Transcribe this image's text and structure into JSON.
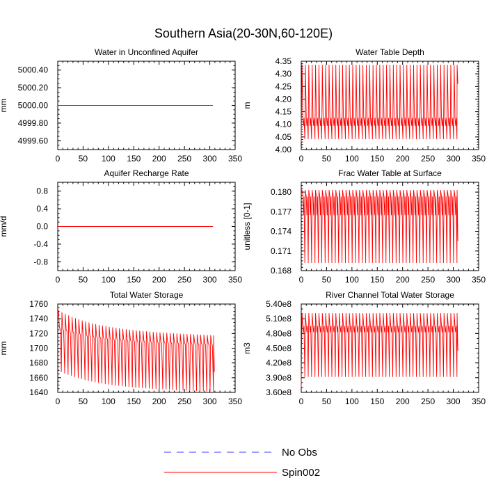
{
  "figure": {
    "title": "Southern Asia(20-30N,60-120E)",
    "colors": {
      "spin": "#ff0000",
      "noobs": "#3b3bff",
      "axis": "#000000"
    }
  },
  "legend": {
    "items": [
      {
        "label": "No Obs",
        "style": "dashed",
        "color": "#3b3bff"
      },
      {
        "label": "Spin002",
        "style": "solid",
        "color": "#ff0000"
      }
    ]
  },
  "chart_data": [
    {
      "id": "unconfined-aquifer",
      "type": "line",
      "title": "Water in Unconfined Aquifer",
      "ylabel": "mm",
      "xlim": [
        0,
        350
      ],
      "xticks": [
        0,
        50,
        100,
        150,
        200,
        250,
        300,
        350
      ],
      "ylim": [
        4999.5,
        5000.5
      ],
      "yticks": [
        4999.6,
        4999.8,
        5000.0,
        5000.2,
        5000.4
      ],
      "ytick_labels": [
        "4999.60",
        "4999.80",
        "5000.00",
        "5000.20",
        "5000.40"
      ],
      "minor_y_step": 0.05,
      "series": [
        {
          "name": "Spin002",
          "color": "#ff0000",
          "pattern": "constant",
          "x_end": 306,
          "value": 5000.0
        }
      ]
    },
    {
      "id": "water-table-depth",
      "type": "line",
      "title": "Water Table Depth",
      "ylabel": "m",
      "xlim": [
        0,
        350
      ],
      "xticks": [
        0,
        50,
        100,
        150,
        200,
        250,
        300,
        350
      ],
      "ylim": [
        4.0,
        4.35
      ],
      "yticks": [
        4.0,
        4.05,
        4.1,
        4.15,
        4.2,
        4.25,
        4.3,
        4.35
      ],
      "ytick_labels": [
        "4.00",
        "4.05",
        "4.10",
        "4.15",
        "4.20",
        "4.25",
        "4.30",
        "4.35"
      ],
      "minor_y_step": 0.01,
      "series": [
        {
          "name": "Spin002",
          "color": "#ff0000",
          "pattern": "seasonal",
          "period": 6.67,
          "cycles": 46,
          "x_end": 309,
          "peak": 4.335,
          "trough": 4.042,
          "mid_high": 4.125,
          "mid_low": 4.095,
          "start": 4.03,
          "end_value": 4.26
        }
      ]
    },
    {
      "id": "recharge-rate",
      "type": "line",
      "title": "Aquifer Recharge Rate",
      "ylabel": "mm/d",
      "xlim": [
        0,
        350
      ],
      "xticks": [
        0,
        50,
        100,
        150,
        200,
        250,
        300,
        350
      ],
      "ylim": [
        -1.0,
        1.0
      ],
      "yticks": [
        -0.8,
        -0.4,
        0.0,
        0.4,
        0.8
      ],
      "ytick_labels": [
        "-0.8",
        "-0.4",
        "0.0",
        "0.4",
        "0.8"
      ],
      "minor_y_step": 0.1,
      "series": [
        {
          "name": "Spin002",
          "color": "#ff0000",
          "pattern": "constant",
          "x_end": 306,
          "value": 0.0
        }
      ]
    },
    {
      "id": "frac-water-table",
      "type": "line",
      "title": "Frac Water Table at Surface",
      "ylabel": "unitless [0-1]",
      "xlim": [
        0,
        350
      ],
      "xticks": [
        0,
        50,
        100,
        150,
        200,
        250,
        300,
        350
      ],
      "ylim": [
        0.168,
        0.1815
      ],
      "yticks": [
        0.168,
        0.171,
        0.174,
        0.177,
        0.18
      ],
      "ytick_labels": [
        "0.168",
        "0.171",
        "0.174",
        "0.177",
        "0.180"
      ],
      "minor_y_step": 0.0005,
      "series": [
        {
          "name": "Spin002",
          "color": "#ff0000",
          "pattern": "seasonal",
          "period": 6.67,
          "cycles": 46,
          "x_end": 309,
          "peak": 0.1803,
          "trough": 0.1692,
          "mid_high": 0.1793,
          "mid_low": 0.1765,
          "start": 0.1803,
          "end_value": 0.1725
        }
      ]
    },
    {
      "id": "total-water-storage",
      "type": "line",
      "title": "Total Water Storage",
      "ylabel": "mm",
      "xlim": [
        0,
        350
      ],
      "xticks": [
        0,
        50,
        100,
        150,
        200,
        250,
        300,
        350
      ],
      "ylim": [
        1640,
        1760
      ],
      "yticks": [
        1640,
        1660,
        1680,
        1700,
        1720,
        1740,
        1760
      ],
      "ytick_labels": [
        "1640",
        "1660",
        "1680",
        "1700",
        "1720",
        "1740",
        "1760"
      ],
      "minor_y_step": 5,
      "series": [
        {
          "name": "Spin002",
          "color": "#ff0000",
          "pattern": "decay",
          "period": 6.67,
          "cycles": 46,
          "x_end": 309,
          "peak_start": 1751,
          "peak_end": 1717,
          "trough_start": 1668,
          "trough_end": 1641,
          "mid_start": 1728,
          "mid_end": 1706,
          "end_value": 1668
        }
      ]
    },
    {
      "id": "river-storage",
      "type": "line",
      "title": "River Channel Total Water Storage",
      "ylabel": "m3",
      "xlim": [
        0,
        350
      ],
      "xticks": [
        0,
        50,
        100,
        150,
        200,
        250,
        300,
        350
      ],
      "ylim": [
        360000000,
        540000000
      ],
      "yticks": [
        360000000,
        390000000,
        420000000,
        450000000,
        480000000,
        510000000,
        540000000
      ],
      "ytick_labels": [
        "3.60e8",
        "3.90e8",
        "4.20e8",
        "4.50e8",
        "4.80e8",
        "5.10e8",
        "5.40e8"
      ],
      "minor_y_step": 10000000,
      "series": [
        {
          "name": "Spin002",
          "color": "#ff0000",
          "pattern": "seasonal",
          "period": 6.67,
          "cycles": 46,
          "x_end": 309,
          "peak": 521000000,
          "trough": 392000000,
          "mid_high": 495000000,
          "mid_low": 483000000,
          "start": 370000000,
          "end_value": 445000000
        }
      ]
    }
  ]
}
